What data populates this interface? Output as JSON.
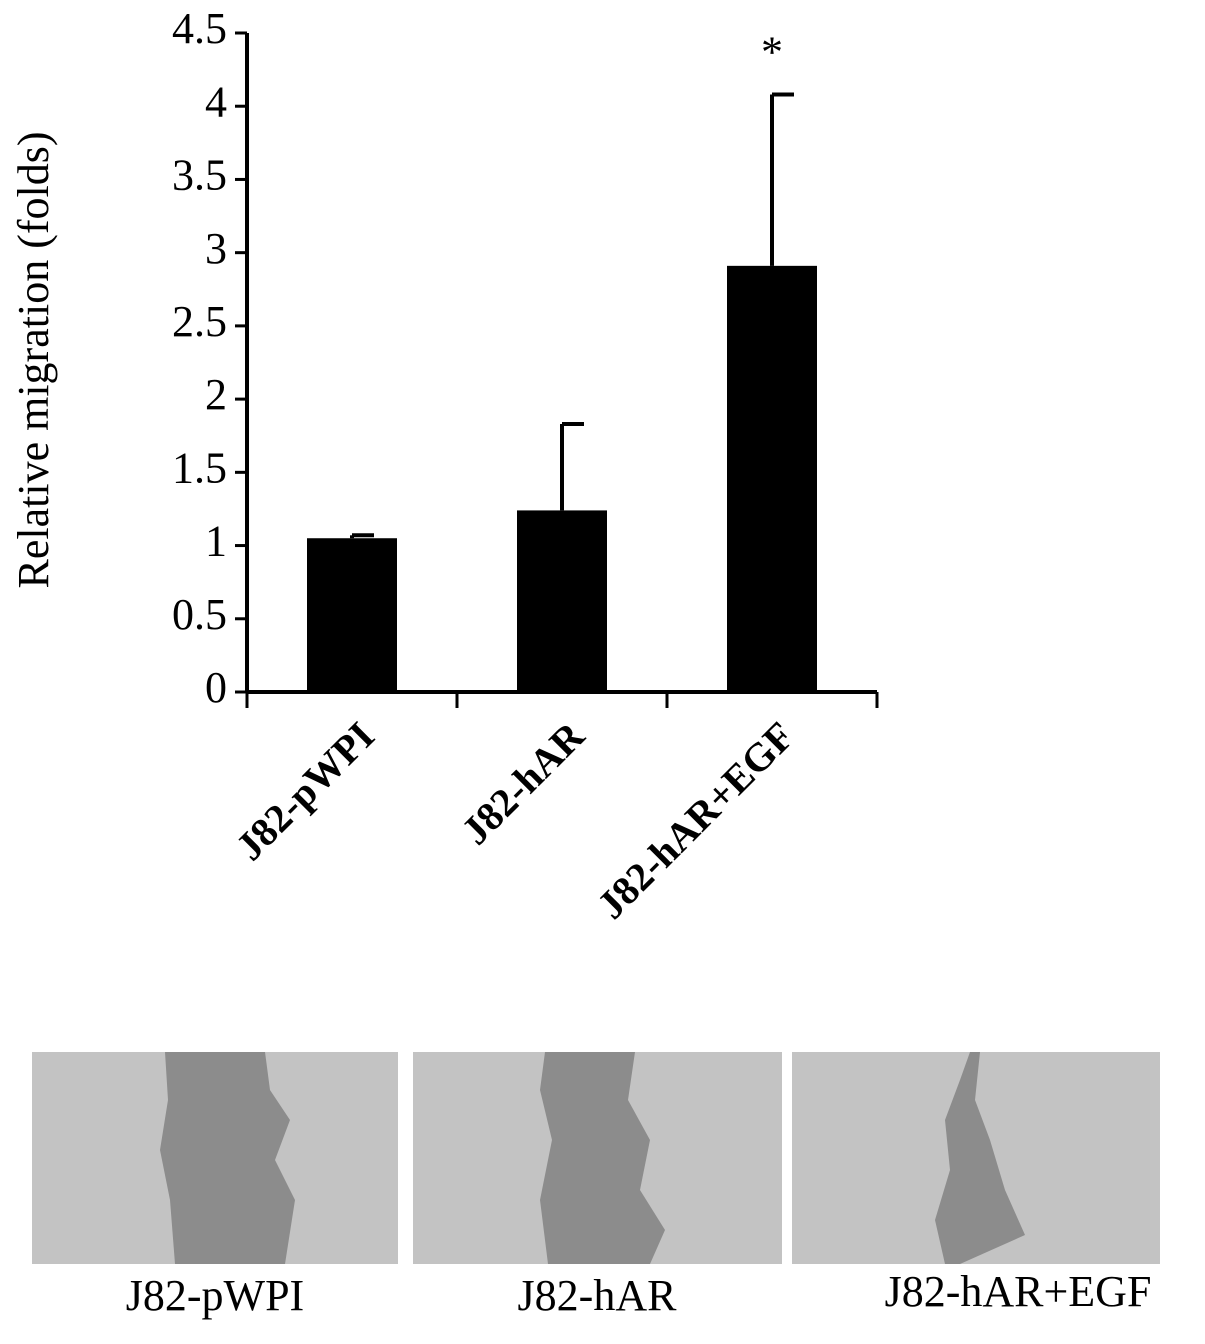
{
  "chart_data": {
    "type": "bar",
    "ylabel": "Relative migration (folds)",
    "categories": [
      "J82-pWPI",
      "J82-hAR",
      "J82-hAR+EGF"
    ],
    "values": [
      1.05,
      1.24,
      2.91
    ],
    "errors": [
      0.02,
      0.59,
      1.17
    ],
    "color": "#000000",
    "annotation": "*",
    "ylim": [
      0,
      4.5
    ],
    "yticks": [
      0,
      0.5,
      1,
      1.5,
      2,
      2.5,
      3,
      3.5,
      4,
      4.5
    ]
  },
  "panels": {
    "captions": [
      "J82-pWPI",
      "J82-hAR",
      "J82-hAR+EGF"
    ]
  }
}
